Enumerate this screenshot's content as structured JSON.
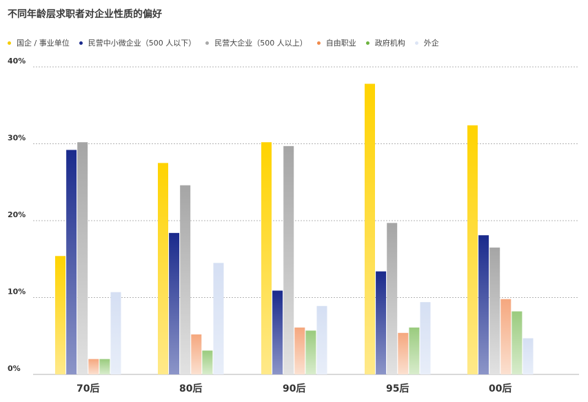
{
  "chart_data": {
    "type": "bar",
    "title": "不同年龄层求职者对企业性质的偏好",
    "categories": [
      "70后",
      "80后",
      "90后",
      "95后",
      "00后"
    ],
    "ylim": [
      0,
      40
    ],
    "yticks": [
      "0%",
      "10%",
      "20%",
      "30%",
      "40%"
    ],
    "grid": true,
    "legend_position": "top-left",
    "series": [
      {
        "name": "国企 / 事业单位",
        "color_top": "#FFD300",
        "color_bottom": "#FFE98A",
        "values": [
          15.4,
          27.5,
          30.2,
          37.8,
          32.4
        ]
      },
      {
        "name": "民营中小微企业（500 人以下）",
        "color_top": "#1A2A8C",
        "color_bottom": "#8C95C8",
        "values": [
          29.2,
          18.4,
          10.9,
          13.4,
          18.1
        ]
      },
      {
        "name": "民营大企业（500 人以上）",
        "color_top": "#A5A5A5",
        "color_bottom": "#E2E2E2",
        "values": [
          30.2,
          24.6,
          29.7,
          19.7,
          16.5
        ]
      },
      {
        "name": "自由职业",
        "color_top": "#F5A77E",
        "color_bottom": "#FBE0D0",
        "values": [
          2.0,
          5.2,
          6.1,
          5.4,
          9.8
        ]
      },
      {
        "name": "政府机构",
        "color_top": "#9ACB7E",
        "color_bottom": "#D8ECCC",
        "values": [
          2.0,
          3.1,
          5.7,
          6.1,
          8.2
        ]
      },
      {
        "name": "外企",
        "color_top": "#D5DFF3",
        "color_bottom": "#E8EEF9",
        "values": [
          10.7,
          14.5,
          8.9,
          9.4,
          4.7
        ]
      }
    ]
  },
  "legend_dot_colors": [
    "#F5CC00",
    "#1A2A8C",
    "#A8A8A8",
    "#F08A4B",
    "#6DB33F",
    "#DDE5F5"
  ],
  "colors": {
    "grid": "#9a9a9a",
    "axis_text": "#333333",
    "category_text": "#333333"
  }
}
